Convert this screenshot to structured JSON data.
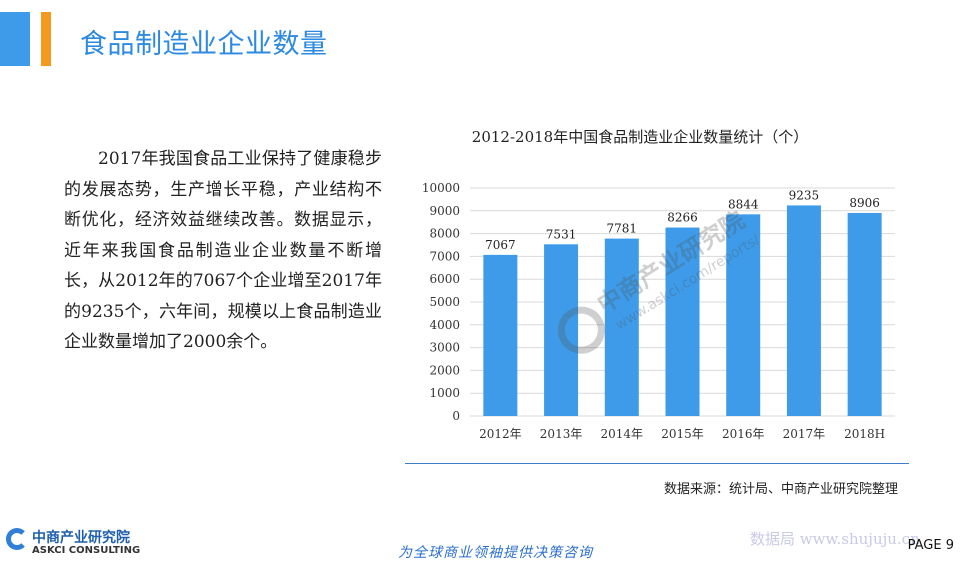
{
  "header": {
    "title": "食品制造业企业数量"
  },
  "body_text": "2017年我国食品工业保持了健康稳步的发展态势，生产增长平稳，产业结构不断优化，经济效益继续改善。数据显示，近年来我国食品制造业企业数量不断增长，从2012年的7067个企业增至2017年的9235个，六年间，规模以上食品制造业企业数量增加了2000余个。",
  "chart_data": {
    "type": "bar",
    "title": "2012-2018年中国食品制造业企业数量统计（个）",
    "categories": [
      "2012年",
      "2013年",
      "2014年",
      "2015年",
      "2016年",
      "2017年",
      "2018H"
    ],
    "values": [
      7067,
      7531,
      7781,
      8266,
      8844,
      9235,
      8906
    ],
    "ylim": [
      0,
      10000
    ],
    "yticks": [
      "0",
      "1000",
      "2000",
      "3000",
      "4000",
      "5000",
      "6000",
      "7000",
      "8000",
      "9000",
      "10000"
    ],
    "grid": true,
    "bar_color": "#3d9be9"
  },
  "source": "数据来源：统计局、中商产业研究院整理",
  "footer": {
    "logo_cn": "中商产业研究院",
    "logo_en": "ASKCI CONSULTING",
    "slogan": "为全球商业领袖提供决策咨询",
    "watermark": "数据局 www.shujuju.cn",
    "page": "PAGE 9"
  },
  "watermark": {
    "logo_text": "中商产业研究院",
    "url": "www.askci.com/reports/"
  },
  "colors": {
    "accent_blue": "#3d9be9",
    "accent_orange": "#f39a1e",
    "title_blue": "#2c8ae0"
  }
}
